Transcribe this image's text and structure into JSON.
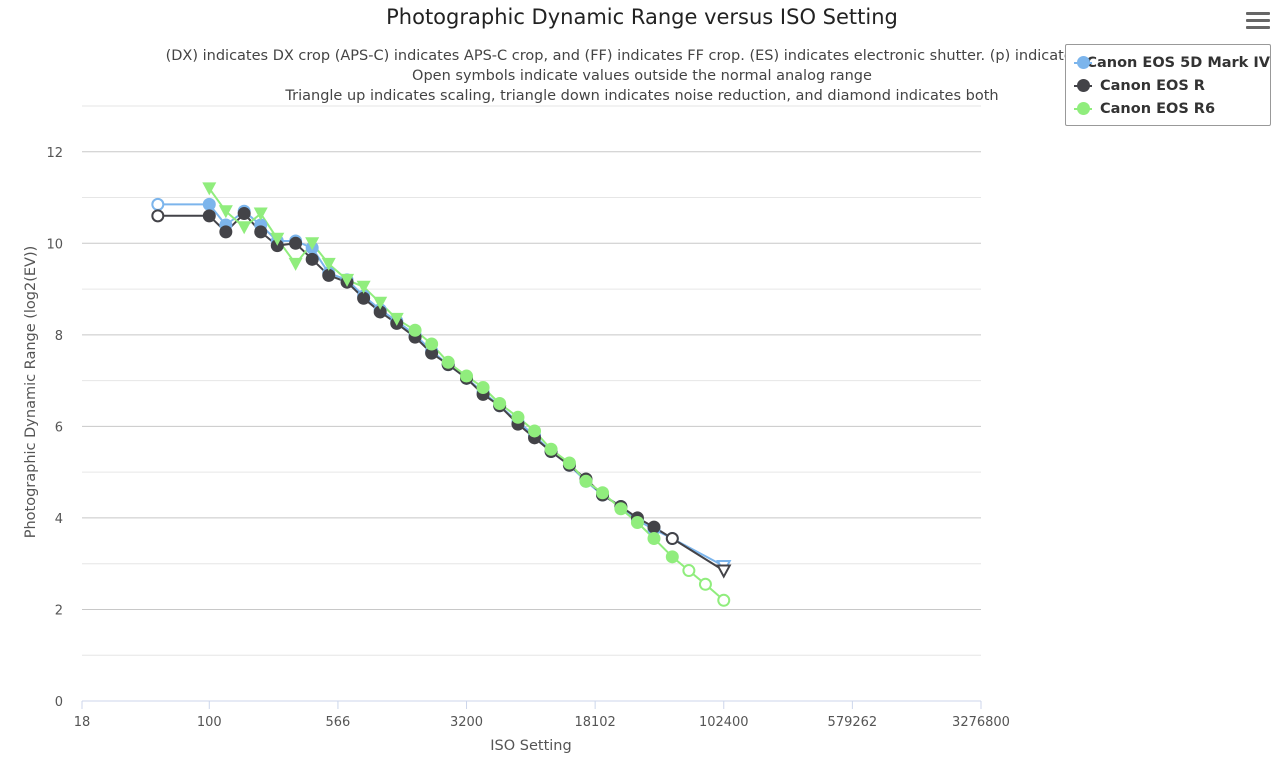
{
  "title": "Photographic Dynamic Range versus ISO Setting",
  "subtitle": [
    "(DX) indicates DX crop (APS-C) indicates APS-C crop, and (FF) indicates FF crop. (ES) indicates electronic shutter. (p) indicated preli",
    "Open symbols indicate values outside the normal analog range",
    "Triangle up indicates scaling, triangle down indicates noise reduction, and diamond indicates both"
  ],
  "menu": {
    "icon": "hamburger-menu-icon"
  },
  "legend": {
    "items": [
      {
        "label": "Canon EOS 5D Mark IV",
        "color": "#7cb5ec"
      },
      {
        "label": "Canon EOS R",
        "color": "#434348"
      },
      {
        "label": "Canon EOS R6",
        "color": "#90ed7d"
      }
    ]
  },
  "chart_data": {
    "type": "line",
    "title": "Photographic Dynamic Range versus ISO Setting",
    "xlabel": "ISO Setting",
    "ylabel": "Photographic Dynamic Range (log2(EV))",
    "x_scale": "log2",
    "xlim": [
      18,
      3276800
    ],
    "ylim": [
      0,
      13
    ],
    "xticks": [
      18,
      100,
      566,
      3200,
      18102,
      102400,
      579262,
      3276800
    ],
    "yticks": [
      0,
      2,
      4,
      6,
      8,
      10,
      12
    ],
    "grid": true,
    "legend_position": "top-right",
    "series": [
      {
        "name": "Canon EOS 5D Mark IV",
        "color": "#7cb5ec",
        "points": [
          {
            "x": 50,
            "y": 10.85,
            "marker": "open"
          },
          {
            "x": 100,
            "y": 10.85,
            "marker": "filled"
          },
          {
            "x": 125,
            "y": 10.4,
            "marker": "filled"
          },
          {
            "x": 160,
            "y": 10.7,
            "marker": "filled"
          },
          {
            "x": 200,
            "y": 10.4,
            "marker": "filled"
          },
          {
            "x": 250,
            "y": 10.05,
            "marker": "filled"
          },
          {
            "x": 320,
            "y": 10.05,
            "marker": "filled"
          },
          {
            "x": 400,
            "y": 9.9,
            "marker": "filled"
          },
          {
            "x": 500,
            "y": 9.35,
            "marker": "filled"
          },
          {
            "x": 640,
            "y": 9.2,
            "marker": "filled"
          },
          {
            "x": 800,
            "y": 8.85,
            "marker": "filled"
          },
          {
            "x": 1000,
            "y": 8.55,
            "marker": "filled"
          },
          {
            "x": 1250,
            "y": 8.3,
            "marker": "filled"
          },
          {
            "x": 1600,
            "y": 8.0,
            "marker": "filled"
          },
          {
            "x": 2000,
            "y": 7.65,
            "marker": "filled"
          },
          {
            "x": 2500,
            "y": 7.35,
            "marker": "filled"
          },
          {
            "x": 3200,
            "y": 7.05,
            "marker": "filled"
          },
          {
            "x": 4000,
            "y": 6.75,
            "marker": "filled"
          },
          {
            "x": 5000,
            "y": 6.45,
            "marker": "filled"
          },
          {
            "x": 6400,
            "y": 6.1,
            "marker": "filled"
          },
          {
            "x": 8000,
            "y": 5.8,
            "marker": "filled"
          },
          {
            "x": 10000,
            "y": 5.45,
            "marker": "filled"
          },
          {
            "x": 12800,
            "y": 5.15,
            "marker": "filled"
          },
          {
            "x": 16000,
            "y": 4.8,
            "marker": "filled"
          },
          {
            "x": 20000,
            "y": 4.5,
            "marker": "filled"
          },
          {
            "x": 25600,
            "y": 4.25,
            "marker": "filled"
          },
          {
            "x": 32000,
            "y": 3.95,
            "marker": "filled"
          },
          {
            "x": 40000,
            "y": 3.75,
            "marker": "filled"
          },
          {
            "x": 51200,
            "y": 3.55,
            "marker": "open"
          },
          {
            "x": 102400,
            "y": 2.95,
            "marker": "triangle-down-open"
          }
        ]
      },
      {
        "name": "Canon EOS R",
        "color": "#434348",
        "points": [
          {
            "x": 50,
            "y": 10.6,
            "marker": "open"
          },
          {
            "x": 100,
            "y": 10.6,
            "marker": "filled"
          },
          {
            "x": 125,
            "y": 10.25,
            "marker": "filled"
          },
          {
            "x": 160,
            "y": 10.65,
            "marker": "filled"
          },
          {
            "x": 200,
            "y": 10.25,
            "marker": "filled"
          },
          {
            "x": 250,
            "y": 9.95,
            "marker": "filled"
          },
          {
            "x": 320,
            "y": 10.0,
            "marker": "filled"
          },
          {
            "x": 400,
            "y": 9.65,
            "marker": "filled"
          },
          {
            "x": 500,
            "y": 9.3,
            "marker": "filled"
          },
          {
            "x": 640,
            "y": 9.15,
            "marker": "filled"
          },
          {
            "x": 800,
            "y": 8.8,
            "marker": "filled"
          },
          {
            "x": 1000,
            "y": 8.5,
            "marker": "filled"
          },
          {
            "x": 1250,
            "y": 8.25,
            "marker": "filled"
          },
          {
            "x": 1600,
            "y": 7.95,
            "marker": "filled"
          },
          {
            "x": 2000,
            "y": 7.6,
            "marker": "filled"
          },
          {
            "x": 2500,
            "y": 7.35,
            "marker": "filled"
          },
          {
            "x": 3200,
            "y": 7.05,
            "marker": "filled"
          },
          {
            "x": 4000,
            "y": 6.7,
            "marker": "filled"
          },
          {
            "x": 5000,
            "y": 6.45,
            "marker": "filled"
          },
          {
            "x": 6400,
            "y": 6.05,
            "marker": "filled"
          },
          {
            "x": 8000,
            "y": 5.75,
            "marker": "filled"
          },
          {
            "x": 10000,
            "y": 5.45,
            "marker": "filled"
          },
          {
            "x": 12800,
            "y": 5.15,
            "marker": "filled"
          },
          {
            "x": 16000,
            "y": 4.85,
            "marker": "filled"
          },
          {
            "x": 20000,
            "y": 4.5,
            "marker": "filled"
          },
          {
            "x": 25600,
            "y": 4.25,
            "marker": "filled"
          },
          {
            "x": 32000,
            "y": 4.0,
            "marker": "filled"
          },
          {
            "x": 40000,
            "y": 3.8,
            "marker": "filled"
          },
          {
            "x": 51200,
            "y": 3.55,
            "marker": "open"
          },
          {
            "x": 102400,
            "y": 2.85,
            "marker": "triangle-down-open"
          }
        ]
      },
      {
        "name": "Canon EOS R6",
        "color": "#90ed7d",
        "points": [
          {
            "x": 100,
            "y": 11.2,
            "marker": "triangle-down"
          },
          {
            "x": 125,
            "y": 10.7,
            "marker": "triangle-down"
          },
          {
            "x": 160,
            "y": 10.35,
            "marker": "triangle-down"
          },
          {
            "x": 200,
            "y": 10.65,
            "marker": "triangle-down"
          },
          {
            "x": 250,
            "y": 10.1,
            "marker": "triangle-down"
          },
          {
            "x": 320,
            "y": 9.55,
            "marker": "triangle-down"
          },
          {
            "x": 400,
            "y": 10.0,
            "marker": "triangle-down"
          },
          {
            "x": 500,
            "y": 9.55,
            "marker": "triangle-down"
          },
          {
            "x": 640,
            "y": 9.2,
            "marker": "triangle-down"
          },
          {
            "x": 800,
            "y": 9.05,
            "marker": "triangle-down"
          },
          {
            "x": 1000,
            "y": 8.7,
            "marker": "triangle-down"
          },
          {
            "x": 1250,
            "y": 8.35,
            "marker": "triangle-down"
          },
          {
            "x": 1600,
            "y": 8.1,
            "marker": "filled"
          },
          {
            "x": 2000,
            "y": 7.8,
            "marker": "filled"
          },
          {
            "x": 2500,
            "y": 7.4,
            "marker": "filled"
          },
          {
            "x": 3200,
            "y": 7.1,
            "marker": "filled"
          },
          {
            "x": 4000,
            "y": 6.85,
            "marker": "filled"
          },
          {
            "x": 5000,
            "y": 6.5,
            "marker": "filled"
          },
          {
            "x": 6400,
            "y": 6.2,
            "marker": "filled"
          },
          {
            "x": 8000,
            "y": 5.9,
            "marker": "filled"
          },
          {
            "x": 10000,
            "y": 5.5,
            "marker": "filled"
          },
          {
            "x": 12800,
            "y": 5.2,
            "marker": "filled"
          },
          {
            "x": 16000,
            "y": 4.8,
            "marker": "filled"
          },
          {
            "x": 20000,
            "y": 4.55,
            "marker": "filled"
          },
          {
            "x": 25600,
            "y": 4.2,
            "marker": "filled"
          },
          {
            "x": 32000,
            "y": 3.9,
            "marker": "filled"
          },
          {
            "x": 40000,
            "y": 3.55,
            "marker": "filled"
          },
          {
            "x": 51200,
            "y": 3.15,
            "marker": "filled"
          },
          {
            "x": 64000,
            "y": 2.85,
            "marker": "open"
          },
          {
            "x": 80000,
            "y": 2.55,
            "marker": "open"
          },
          {
            "x": 102400,
            "y": 2.2,
            "marker": "open"
          }
        ]
      }
    ]
  }
}
